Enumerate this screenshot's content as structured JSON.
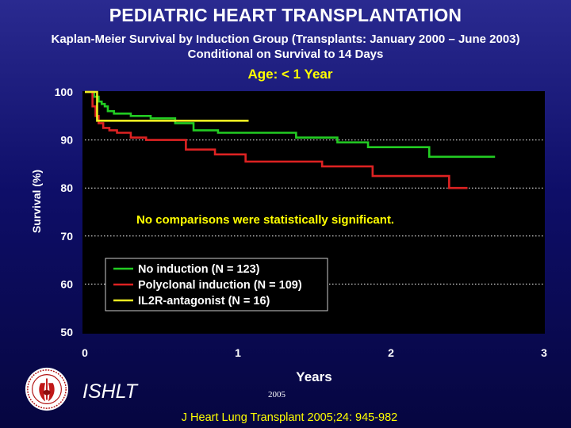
{
  "header": {
    "title": "PEDIATRIC HEART TRANSPLANTATION",
    "subtitle_line1": "Kaplan-Meier Survival by Induction Group (Transplants: January 2000 – June 2003)",
    "subtitle_line2": "Conditional on Survival to 14 Days",
    "age_group": "Age: < 1 Year"
  },
  "footer": {
    "org": "ISHLT",
    "year": "2005",
    "citation": "J Heart Lung Transplant 2005;24: 945-982"
  },
  "chart_data": {
    "type": "line",
    "step": true,
    "xlabel": "Years",
    "ylabel": "Survival (%)",
    "xlim": [
      0,
      3
    ],
    "ylim": [
      50,
      100
    ],
    "xticks": [
      0,
      1,
      2,
      3
    ],
    "yticks": [
      50,
      60,
      70,
      80,
      90,
      100
    ],
    "grid": "horizontal dashed",
    "legend_position": "bottom-left",
    "annotation": "No comparisons were statistically significant.",
    "series": [
      {
        "name": "No induction (N = 123)",
        "color": "#22cc22",
        "x": [
          0,
          0.06,
          0.09,
          0.11,
          0.13,
          0.15,
          0.19,
          0.3,
          0.43,
          0.59,
          0.71,
          0.87,
          1.05,
          1.38,
          1.65,
          1.85,
          2.25,
          2.68
        ],
        "y": [
          100,
          99,
          98,
          97.5,
          97,
          96,
          95.5,
          95,
          94.5,
          93.5,
          92,
          91.5,
          91.5,
          90.5,
          89.5,
          88.5,
          86.5,
          86.5
        ]
      },
      {
        "name": "Polyclonal induction (N = 109)",
        "color": "#dd2222",
        "x": [
          0,
          0.05,
          0.07,
          0.09,
          0.12,
          0.16,
          0.21,
          0.3,
          0.4,
          0.66,
          0.85,
          1.05,
          1.55,
          1.88,
          2.38,
          2.5
        ],
        "y": [
          100,
          97,
          95,
          93.5,
          92.5,
          92,
          91.5,
          90.5,
          90,
          88,
          87,
          85.5,
          84.5,
          82.5,
          80,
          80
        ]
      },
      {
        "name": "IL2R-antagonist (N = 16)",
        "color": "#eeee22",
        "x": [
          0,
          0.06,
          0.08,
          1.07
        ],
        "y": [
          100,
          100,
          94,
          94
        ]
      }
    ]
  }
}
